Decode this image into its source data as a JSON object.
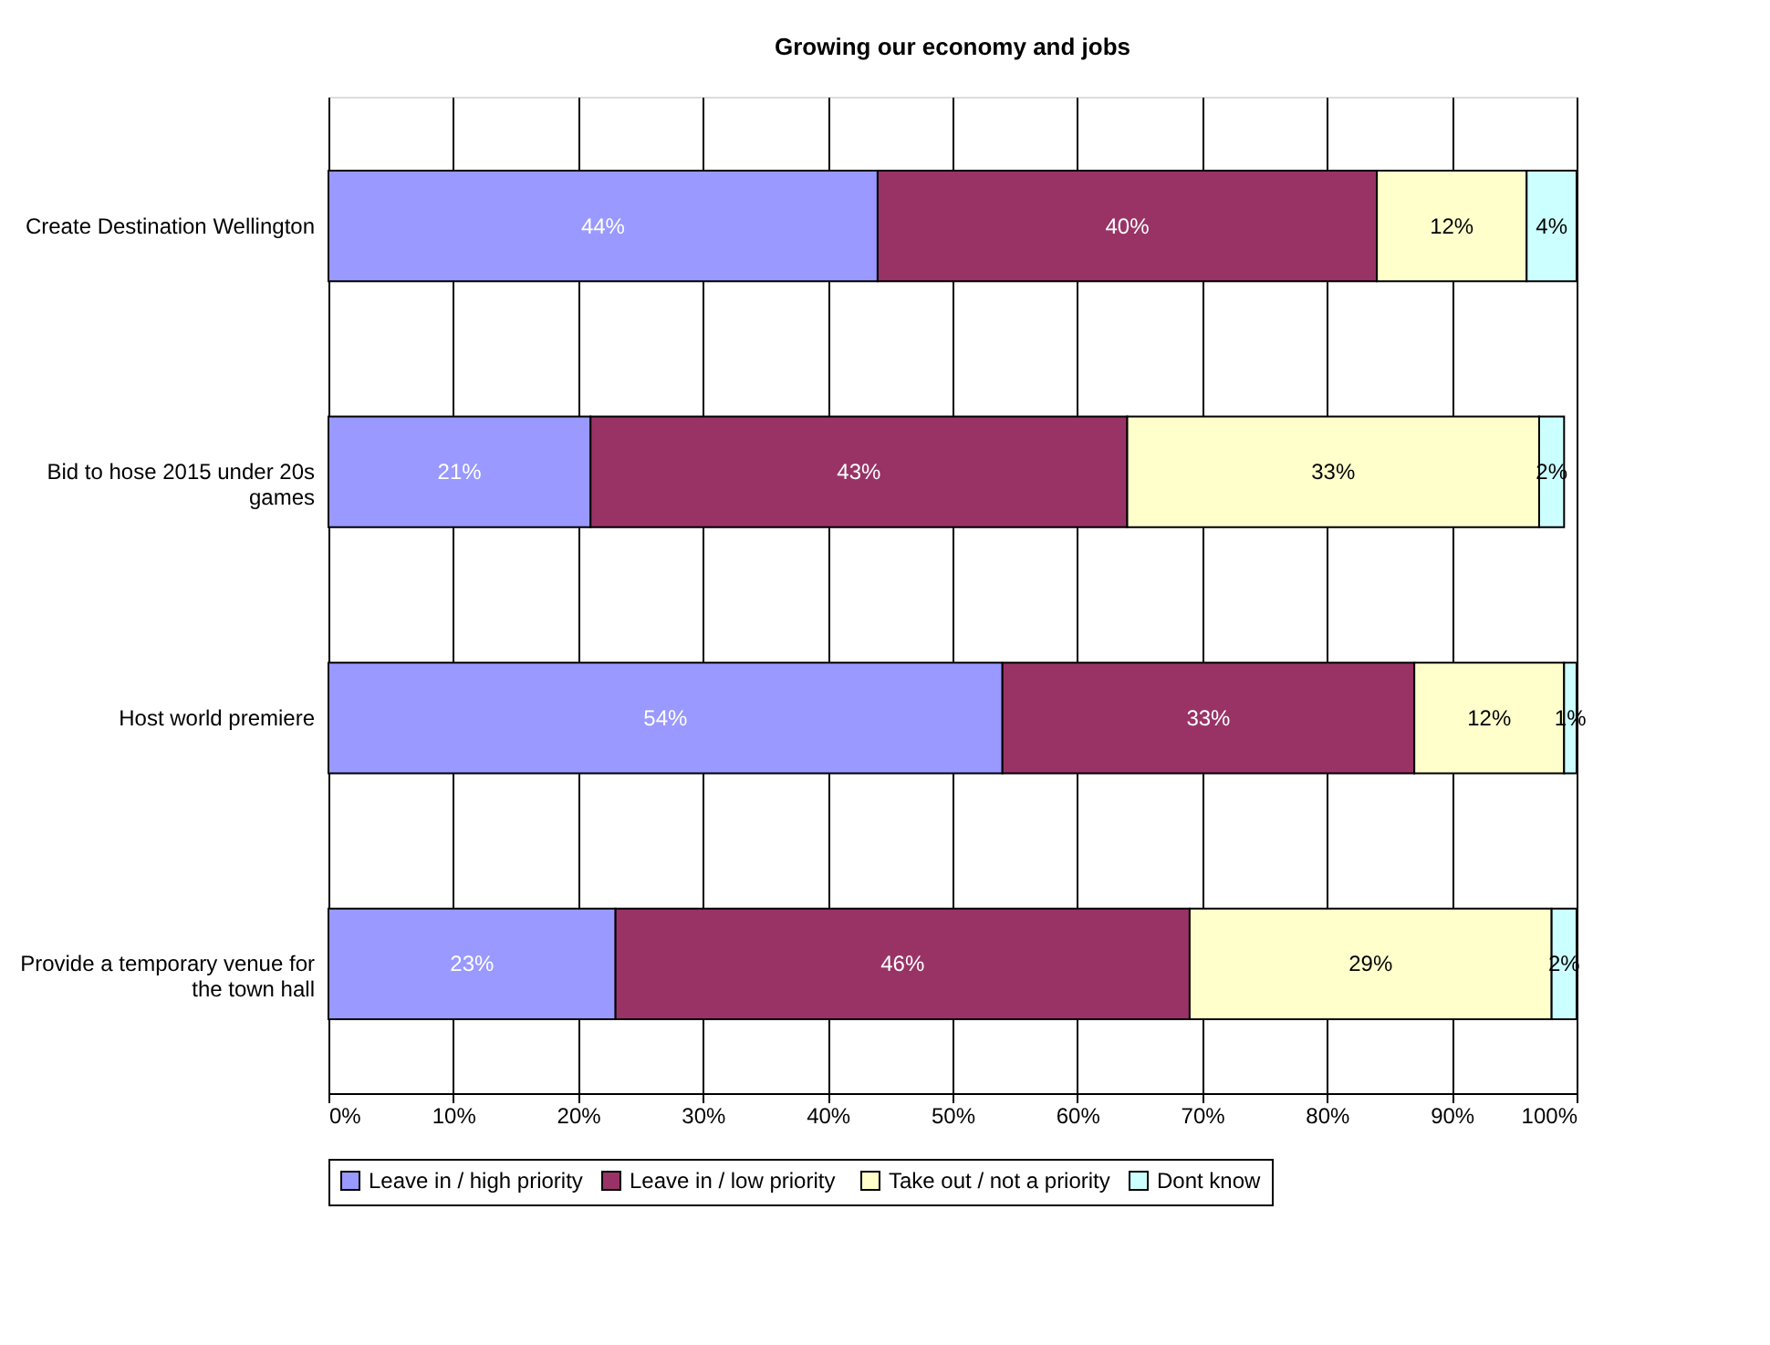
{
  "chart_data": {
    "type": "bar",
    "title": "Growing our economy and jobs",
    "orientation": "horizontal",
    "stacked": true,
    "categories": [
      "Create Destination Wellington",
      "Bid to hose 2015 under 20s games",
      "Host world premiere",
      "Provide a temporary venue for the town hall"
    ],
    "series": [
      {
        "name": "Leave in / high priority",
        "color": "#9999ff",
        "values": [
          44,
          21,
          54,
          23
        ],
        "value_labels": [
          "44%",
          "21%",
          "54%",
          "23%"
        ]
      },
      {
        "name": "Leave in / low  priority",
        "color": "#993366",
        "values": [
          40,
          43,
          33,
          46
        ],
        "value_labels": [
          "40%",
          "43%",
          "33%",
          "46%"
        ]
      },
      {
        "name": "Take out / not a priority",
        "color": "#ffffcc",
        "values": [
          12,
          33,
          12,
          29
        ],
        "value_labels": [
          "12%",
          "33%",
          "12%",
          "29%"
        ]
      },
      {
        "name": "Dont know",
        "color": "#ccffff",
        "values": [
          4,
          2,
          1,
          2
        ],
        "value_labels": [
          "4%",
          "2%",
          "1%",
          "2%"
        ]
      }
    ],
    "xlim": [
      0,
      100
    ],
    "xticks": [
      {
        "value": 0,
        "label": "0%"
      },
      {
        "value": 10,
        "label": "10%"
      },
      {
        "value": 20,
        "label": "20%"
      },
      {
        "value": 30,
        "label": "30%"
      },
      {
        "value": 40,
        "label": "40%"
      },
      {
        "value": 50,
        "label": "50%"
      },
      {
        "value": 60,
        "label": "60%"
      },
      {
        "value": 70,
        "label": "70%"
      },
      {
        "value": 80,
        "label": "80%"
      },
      {
        "value": 90,
        "label": "90%"
      },
      {
        "value": 100,
        "label": "100%"
      }
    ],
    "grid": "x",
    "legend": "bottom"
  }
}
